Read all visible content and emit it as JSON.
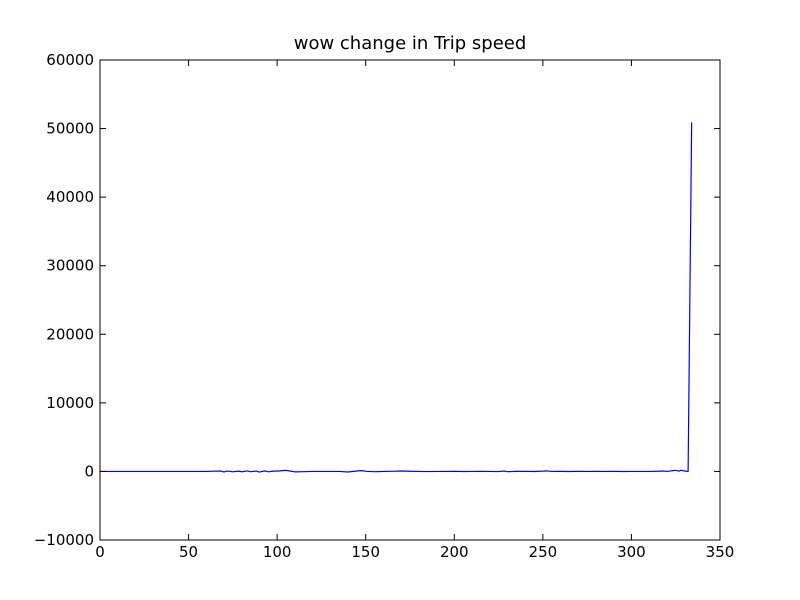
{
  "chart_data": {
    "type": "line",
    "title": "wow change in Trip speed",
    "xlabel": "",
    "ylabel": "",
    "xlim": [
      0,
      350
    ],
    "ylim": [
      -10000,
      60000
    ],
    "xticks": [
      0,
      50,
      100,
      150,
      200,
      250,
      300,
      350
    ],
    "xtick_labels": [
      "0",
      "50",
      "100",
      "150",
      "200",
      "250",
      "300",
      "350"
    ],
    "yticks": [
      -10000,
      0,
      10000,
      20000,
      30000,
      40000,
      50000,
      60000
    ],
    "ytick_labels": [
      "−10000",
      "0",
      "10000",
      "20000",
      "30000",
      "40000",
      "50000",
      "60000"
    ],
    "grid": false,
    "legend": false,
    "series_color": "#0000ff",
    "series": [
      {
        "x": [
          0,
          10,
          20,
          30,
          40,
          50,
          60,
          68,
          70,
          72,
          75,
          78,
          80,
          83,
          85,
          88,
          90,
          93,
          95,
          98,
          100,
          103,
          105,
          108,
          110,
          115,
          120,
          125,
          130,
          135,
          140,
          145,
          148,
          150,
          155,
          160,
          165,
          170,
          175,
          180,
          185,
          190,
          195,
          200,
          205,
          210,
          215,
          220,
          225,
          228,
          230,
          235,
          240,
          245,
          250,
          252,
          255,
          260,
          265,
          270,
          275,
          280,
          285,
          290,
          295,
          300,
          305,
          310,
          315,
          318,
          320,
          323,
          325,
          327,
          328,
          330,
          332,
          334
        ],
        "y": [
          0,
          0,
          0,
          0,
          0,
          0,
          0,
          60,
          -80,
          50,
          -60,
          40,
          -50,
          70,
          -40,
          50,
          -90,
          80,
          -60,
          40,
          50,
          120,
          150,
          30,
          -60,
          -40,
          0,
          0,
          0,
          0,
          -80,
          60,
          120,
          20,
          -40,
          0,
          20,
          60,
          30,
          0,
          -20,
          0,
          0,
          20,
          -10,
          0,
          10,
          0,
          -20,
          60,
          -40,
          10,
          20,
          -10,
          40,
          80,
          0,
          10,
          -10,
          20,
          0,
          10,
          0,
          20,
          -10,
          0,
          0,
          0,
          30,
          60,
          0,
          100,
          160,
          40,
          180,
          60,
          0,
          50900
        ]
      }
    ]
  }
}
